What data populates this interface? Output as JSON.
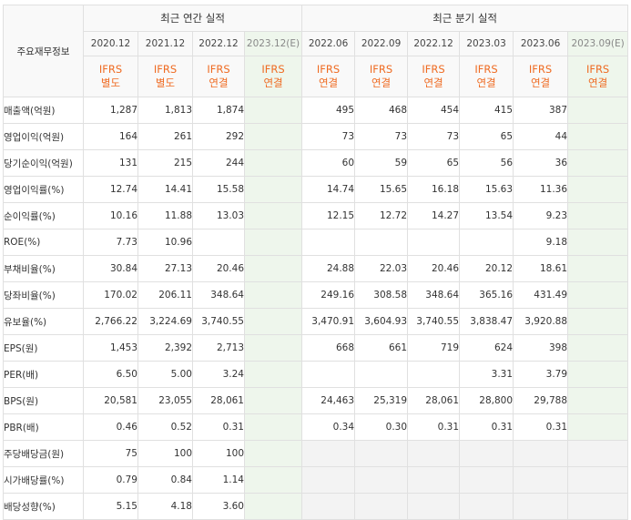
{
  "header": {
    "corner_label": "주요재무정보",
    "annual_title": "최근 연간 실적",
    "quarterly_title": "최근 분기 실적"
  },
  "annual_periods": [
    {
      "period": "2020.12",
      "acc1": "IFRS",
      "acc2": "별도",
      "estimate": false
    },
    {
      "period": "2021.12",
      "acc1": "IFRS",
      "acc2": "별도",
      "estimate": false
    },
    {
      "period": "2022.12",
      "acc1": "IFRS",
      "acc2": "연결",
      "estimate": false
    },
    {
      "period": "2023.12(E)",
      "acc1": "IFRS",
      "acc2": "연결",
      "estimate": true
    }
  ],
  "quarterly_periods": [
    {
      "period": "2022.06",
      "acc1": "IFRS",
      "acc2": "연결",
      "estimate": false
    },
    {
      "period": "2022.09",
      "acc1": "IFRS",
      "acc2": "연결",
      "estimate": false
    },
    {
      "period": "2022.12",
      "acc1": "IFRS",
      "acc2": "연결",
      "estimate": false
    },
    {
      "period": "2023.03",
      "acc1": "IFRS",
      "acc2": "연결",
      "estimate": false
    },
    {
      "period": "2023.06",
      "acc1": "IFRS",
      "acc2": "연결",
      "estimate": false
    },
    {
      "period": "2023.09(E)",
      "acc1": "IFRS",
      "acc2": "연결",
      "estimate": true
    }
  ],
  "rows": [
    {
      "label": "매출액(억원)",
      "annual": [
        "1,287",
        "1,813",
        "1,874",
        ""
      ],
      "quarterly": [
        "495",
        "468",
        "454",
        "415",
        "387",
        ""
      ]
    },
    {
      "label": "영업이익(억원)",
      "annual": [
        "164",
        "261",
        "292",
        ""
      ],
      "quarterly": [
        "73",
        "73",
        "73",
        "65",
        "44",
        ""
      ]
    },
    {
      "label": "당기순이익(억원)",
      "annual": [
        "131",
        "215",
        "244",
        ""
      ],
      "quarterly": [
        "60",
        "59",
        "65",
        "56",
        "36",
        ""
      ]
    },
    {
      "label": "영업이익률(%)",
      "annual": [
        "12.74",
        "14.41",
        "15.58",
        ""
      ],
      "quarterly": [
        "14.74",
        "15.65",
        "16.18",
        "15.63",
        "11.36",
        ""
      ]
    },
    {
      "label": "순이익률(%)",
      "annual": [
        "10.16",
        "11.88",
        "13.03",
        ""
      ],
      "quarterly": [
        "12.15",
        "12.72",
        "14.27",
        "13.54",
        "9.23",
        ""
      ]
    },
    {
      "label": "ROE(%)",
      "annual": [
        "7.73",
        "10.96",
        "",
        ""
      ],
      "quarterly": [
        "",
        "",
        "",
        "",
        "9.18",
        ""
      ]
    },
    {
      "label": "부채비율(%)",
      "annual": [
        "30.84",
        "27.13",
        "20.46",
        ""
      ],
      "quarterly": [
        "24.88",
        "22.03",
        "20.46",
        "20.12",
        "18.61",
        ""
      ]
    },
    {
      "label": "당좌비율(%)",
      "annual": [
        "170.02",
        "206.11",
        "348.64",
        ""
      ],
      "quarterly": [
        "249.16",
        "308.58",
        "348.64",
        "365.16",
        "431.49",
        ""
      ]
    },
    {
      "label": "유보율(%)",
      "annual": [
        "2,766.22",
        "3,224.69",
        "3,740.55",
        ""
      ],
      "quarterly": [
        "3,470.91",
        "3,604.93",
        "3,740.55",
        "3,838.47",
        "3,920.88",
        ""
      ]
    },
    {
      "label": "EPS(원)",
      "annual": [
        "1,453",
        "2,392",
        "2,713",
        ""
      ],
      "quarterly": [
        "668",
        "661",
        "719",
        "624",
        "398",
        ""
      ]
    },
    {
      "label": "PER(배)",
      "annual": [
        "6.50",
        "5.00",
        "3.24",
        ""
      ],
      "quarterly": [
        "",
        "",
        "",
        "3.31",
        "3.79",
        ""
      ]
    },
    {
      "label": "BPS(원)",
      "annual": [
        "20,581",
        "23,055",
        "28,061",
        ""
      ],
      "quarterly": [
        "24,463",
        "25,319",
        "28,061",
        "28,800",
        "29,788",
        ""
      ]
    },
    {
      "label": "PBR(배)",
      "annual": [
        "0.46",
        "0.52",
        "0.31",
        ""
      ],
      "quarterly": [
        "0.34",
        "0.30",
        "0.31",
        "0.31",
        "0.31",
        ""
      ]
    },
    {
      "label": "주당배당금(원)",
      "annual": [
        "75",
        "100",
        "100",
        ""
      ],
      "quarterly": null
    },
    {
      "label": "시가배당률(%)",
      "annual": [
        "0.79",
        "0.84",
        "1.14",
        ""
      ],
      "quarterly": null
    },
    {
      "label": "배당성향(%)",
      "annual": [
        "5.15",
        "4.18",
        "3.60",
        ""
      ],
      "quarterly": null
    }
  ]
}
